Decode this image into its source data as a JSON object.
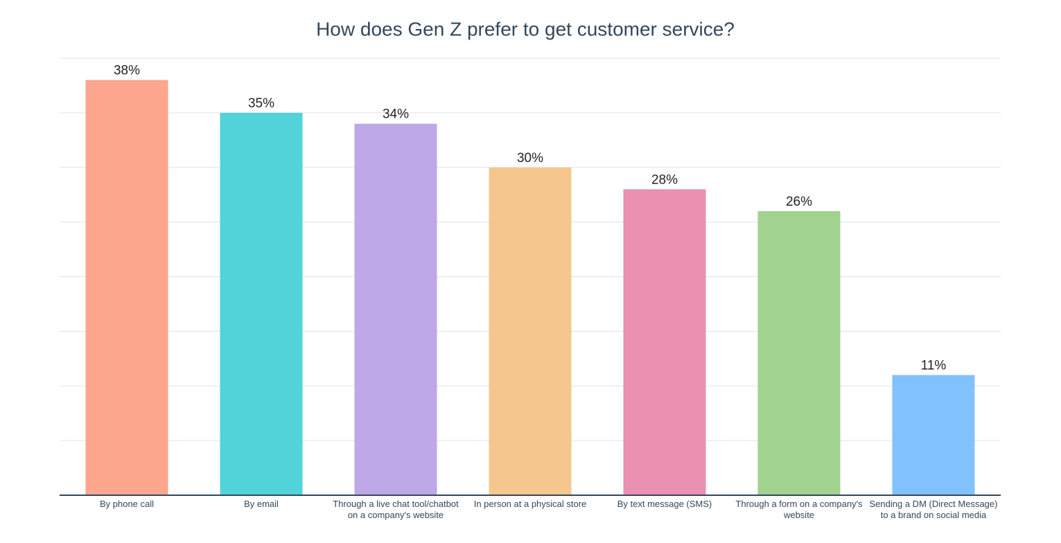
{
  "chart_data": {
    "type": "bar",
    "title": "How does Gen Z prefer to get customer service?",
    "categories": [
      "By phone call",
      "By email",
      "Through a live chat tool/chatbot on a company's website",
      "In person at a physical store",
      "By text message (SMS)",
      "Through a form on a company's website",
      "Sending a DM (Direct Message) to a brand on social media"
    ],
    "values": [
      38,
      35,
      34,
      30,
      28,
      26,
      11
    ],
    "value_labels": [
      "38%",
      "35%",
      "34%",
      "30%",
      "28%",
      "26%",
      "11%"
    ],
    "colors": [
      "#fea58e",
      "#51d3d9",
      "#bea8e8",
      "#f5c78e",
      "#ea90b1",
      "#a2d28f",
      "#81c1fd"
    ],
    "ylim": [
      0,
      40
    ],
    "yticks": [
      0,
      5,
      10,
      15,
      20,
      25,
      30,
      35,
      40
    ],
    "grid": true
  }
}
